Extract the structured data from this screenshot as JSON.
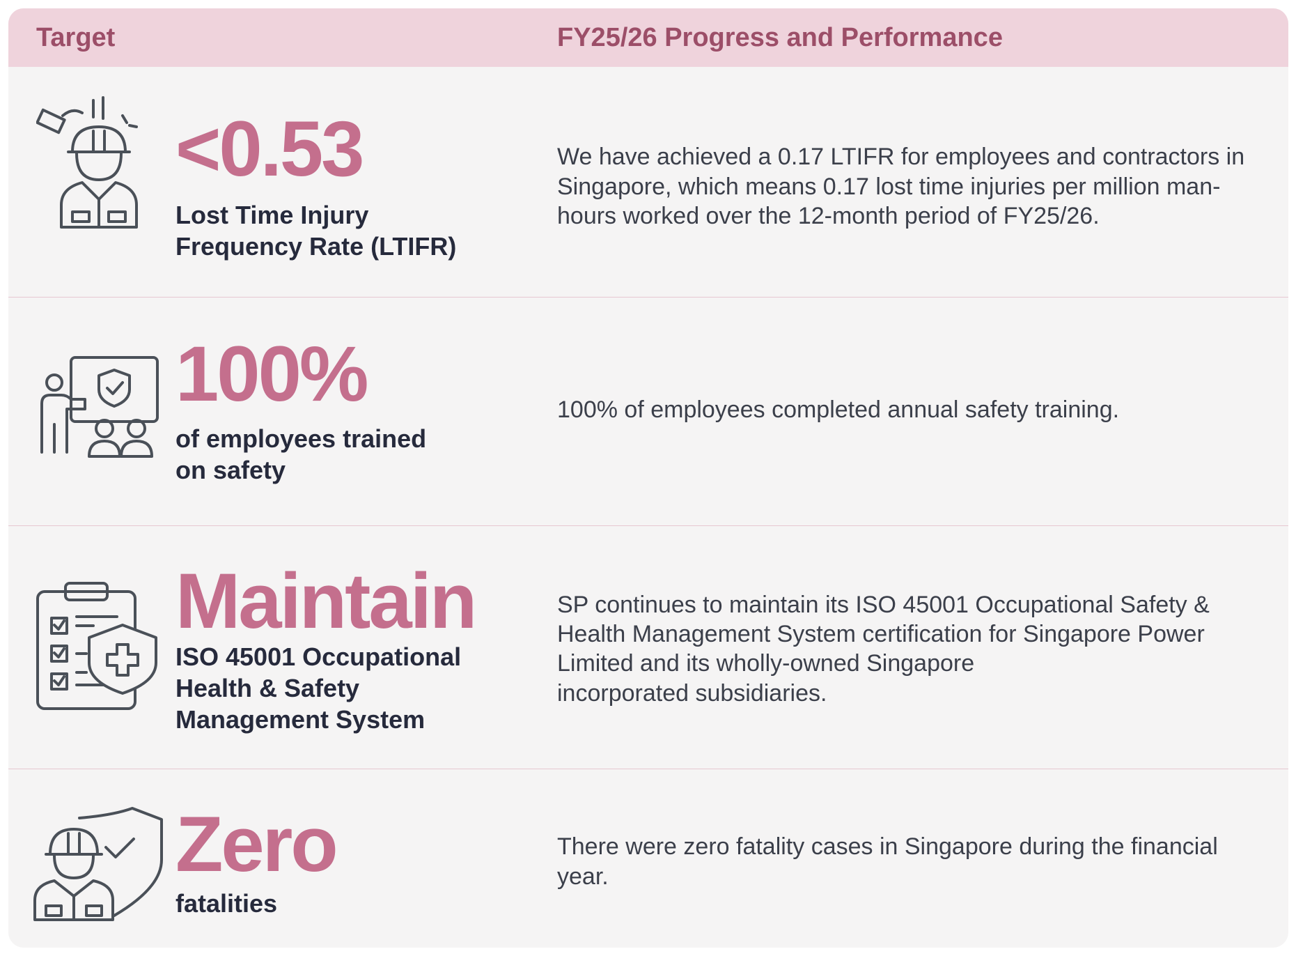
{
  "header": {
    "target": "Target",
    "progress": "FY25/26 Progress and Performance"
  },
  "rows": [
    {
      "icon": "worker-injury-icon",
      "value": "<0.53",
      "label_lines": [
        "Lost Time Injury",
        "Frequency Rate (LTIFR)"
      ],
      "description": "We have achieved a 0.17 LTIFR for employees and contractors in Singapore, which means 0.17 lost time injuries per million man-hours worked over the 12-month period of FY25/26."
    },
    {
      "icon": "safety-training-icon",
      "value": "100%",
      "label_lines": [
        "of employees trained",
        "on safety"
      ],
      "description": "100% of employees completed annual safety training."
    },
    {
      "icon": "clipboard-shield-icon",
      "value": "Maintain",
      "label_lines": [
        "ISO 45001 Occupational",
        "Health & Safety",
        "Management System"
      ],
      "description_lines": [
        "SP continues to maintain its ISO 45001 Occupational Safety &",
        "Health Management System certification for Singapore Power",
        "Limited and its wholly-owned Singapore",
        "incorporated subsidiaries."
      ]
    },
    {
      "icon": "worker-shield-icon",
      "value": "Zero",
      "label_lines": [
        "fatalities"
      ],
      "description": "There were zero fatality cases in Singapore during the financial year."
    }
  ]
}
